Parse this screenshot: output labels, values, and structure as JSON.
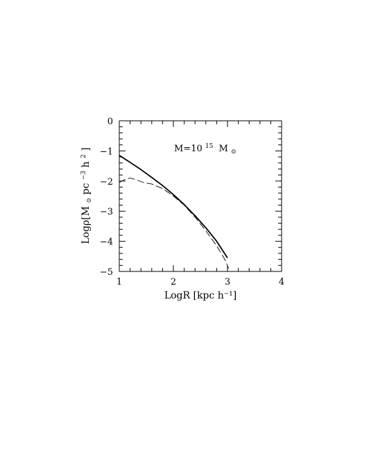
{
  "chart_data": {
    "type": "line",
    "title": "",
    "xlabel": "LogR [kpc h⁻¹]",
    "ylabel_parts": {
      "prefix": "Logρ[M",
      "sun": "⊙",
      "mid": "pc",
      "exp1": "−3",
      "h": "h",
      "exp2": "2",
      "suffix": "]"
    },
    "xlim": [
      1,
      4
    ],
    "ylim": [
      -5,
      0
    ],
    "xticks": [
      1,
      2,
      3,
      4
    ],
    "yticks": [
      0,
      -1,
      -2,
      -3,
      -4,
      -5
    ],
    "xtick_labels": [
      "1",
      "2",
      "3",
      "4"
    ],
    "ytick_labels": [
      "0",
      "−1",
      "−2",
      "−3",
      "−4",
      "−5"
    ],
    "grid": false,
    "annotation": {
      "prefix": "M=10",
      "exponent": "15",
      "unit": "M",
      "sun": "⊙"
    },
    "series": [
      {
        "style": "solid",
        "x": [
          1.0,
          1.2,
          1.4,
          1.6,
          1.8,
          2.0,
          2.2,
          2.4,
          2.6,
          2.8,
          3.0
        ],
        "y": [
          -1.15,
          -1.38,
          -1.62,
          -1.88,
          -2.15,
          -2.45,
          -2.78,
          -3.15,
          -3.55,
          -4.0,
          -4.55
        ]
      },
      {
        "style": "dashed",
        "x": [
          1.0,
          1.1,
          1.2,
          1.3,
          1.45,
          1.6,
          1.8,
          2.0,
          2.2,
          2.4,
          2.6,
          2.8,
          2.95,
          3.02
        ],
        "y": [
          -2.05,
          -1.95,
          -1.9,
          -1.95,
          -2.05,
          -2.1,
          -2.25,
          -2.5,
          -2.8,
          -3.2,
          -3.65,
          -4.15,
          -4.6,
          -4.9
        ]
      }
    ]
  }
}
